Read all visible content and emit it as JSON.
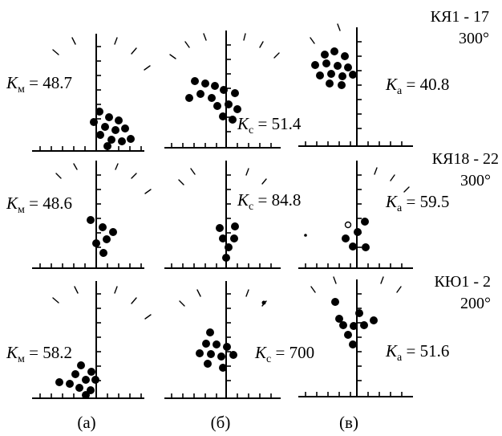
{
  "figure": {
    "site_rows": [
      {
        "site": "КЯ1 - 17",
        "angle": "300°"
      },
      {
        "site": "КЯ18 - 22",
        "angle": "300°"
      },
      {
        "site": "КЮ1 - 2",
        "angle": "200°"
      }
    ],
    "panel_letters": [
      "(а)",
      "(б)",
      "(в)"
    ],
    "k_labels": [
      [
        "48.7",
        "51.4",
        "40.8"
      ],
      [
        "48.6",
        "84.8",
        "59.5"
      ],
      [
        "58.2",
        "700",
        "51.6"
      ]
    ],
    "k_symbol": "K",
    "k_subscripts": [
      "м",
      "с",
      "а"
    ],
    "equals": " = "
  }
}
